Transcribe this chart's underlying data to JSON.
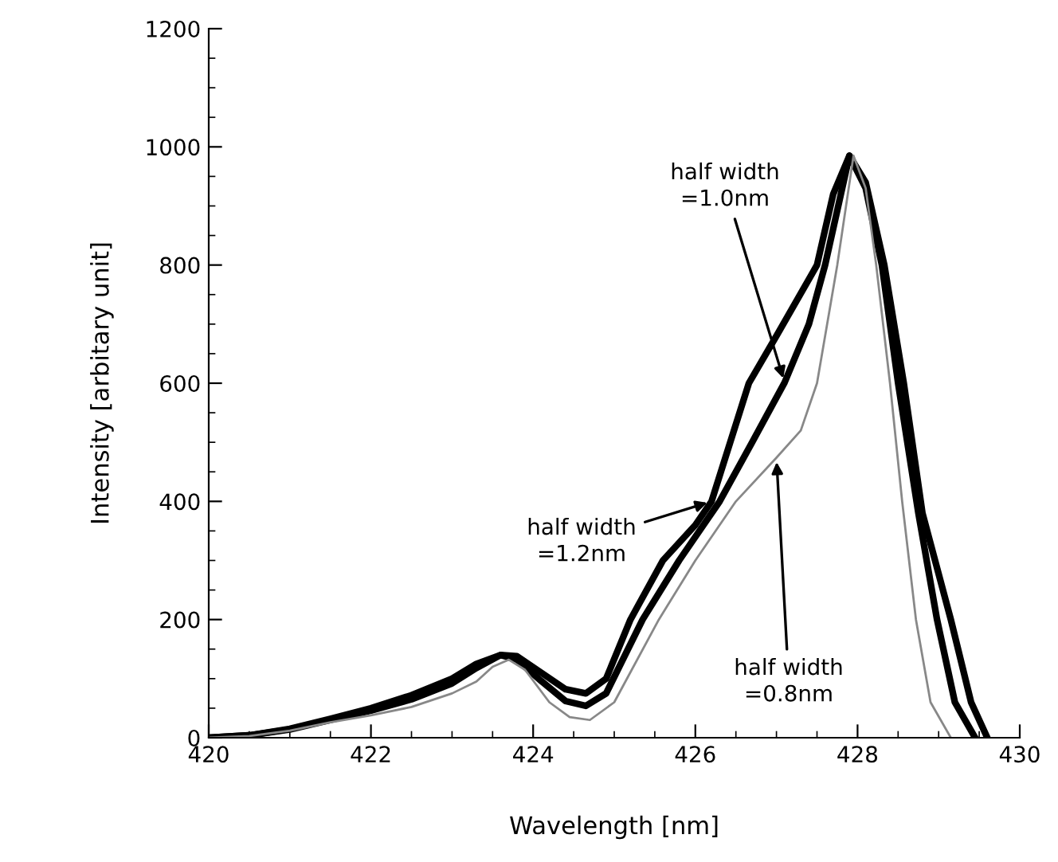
{
  "chart_data": {
    "type": "line",
    "xlabel": "Wavelength [nm]",
    "ylabel": "Intensity [arbitary unit]",
    "xlim": [
      420,
      430
    ],
    "ylim": [
      0,
      1200
    ],
    "xticks": [
      420,
      422,
      424,
      426,
      428,
      430
    ],
    "yticks": [
      0,
      200,
      400,
      600,
      800,
      1000,
      1200
    ],
    "grid": false,
    "legend": false,
    "marker": "none",
    "line_style": "solid",
    "series": [
      {
        "color": "#000000",
        "x": [
          420,
          420.5,
          421,
          421.5,
          422,
          422.5,
          423,
          423.3,
          423.6,
          423.8,
          424.1,
          424.4,
          424.65,
          424.9,
          425.2,
          425.6,
          426.0,
          426.2,
          426.66,
          427.0,
          427.5,
          427.7,
          427.9,
          428.1,
          428.33,
          428.57,
          428.8,
          429.15,
          429.4,
          429.6
        ],
        "values": [
          0,
          4,
          15,
          32,
          50,
          72,
          100,
          125,
          140,
          138,
          110,
          82,
          75,
          100,
          200,
          300,
          360,
          400,
          600,
          680,
          800,
          920,
          985,
          940,
          800,
          600,
          380,
          200,
          60,
          0
        ]
      },
      {
        "color": "#000000",
        "x": [
          420,
          420.5,
          421,
          421.5,
          422,
          422.5,
          423,
          423.3,
          423.6,
          423.8,
          424.1,
          424.4,
          424.65,
          424.9,
          425.35,
          425.8,
          426.3,
          426.7,
          427.1,
          427.4,
          427.6,
          427.9,
          428.1,
          428.3,
          428.5,
          428.75,
          428.98,
          429.2,
          429.45
        ],
        "values": [
          0,
          4,
          14,
          30,
          46,
          65,
          92,
          118,
          140,
          132,
          96,
          62,
          54,
          75,
          200,
          300,
          400,
          500,
          601,
          700,
          800,
          985,
          930,
          800,
          600,
          380,
          200,
          60,
          0
        ]
      },
      {
        "color": "#888888",
        "x": [
          420,
          420.5,
          421,
          421.5,
          422,
          422.5,
          423,
          423.3,
          423.5,
          423.7,
          423.9,
          424.2,
          424.45,
          424.7,
          425.0,
          425.55,
          426.0,
          426.5,
          427.0,
          427.3,
          427.5,
          427.75,
          427.95,
          428.1,
          428.23,
          428.4,
          428.55,
          428.72,
          428.9,
          429.15
        ],
        "values": [
          0,
          3,
          12,
          26,
          38,
          52,
          75,
          95,
          120,
          132,
          115,
          60,
          35,
          30,
          60,
          200,
          300,
          400,
          474,
          520,
          600,
          800,
          985,
          930,
          800,
          600,
          400,
          200,
          60,
          0
        ]
      }
    ],
    "annotations": [
      {
        "text": "half width\n=1.0nm",
        "x": 427.1,
        "y": 601
      },
      {
        "text": "half width\n=1.2nm",
        "x": 426.2,
        "y": 400
      },
      {
        "text": "half width\n=0.8nm",
        "x": 427.0,
        "y": 474
      }
    ]
  }
}
